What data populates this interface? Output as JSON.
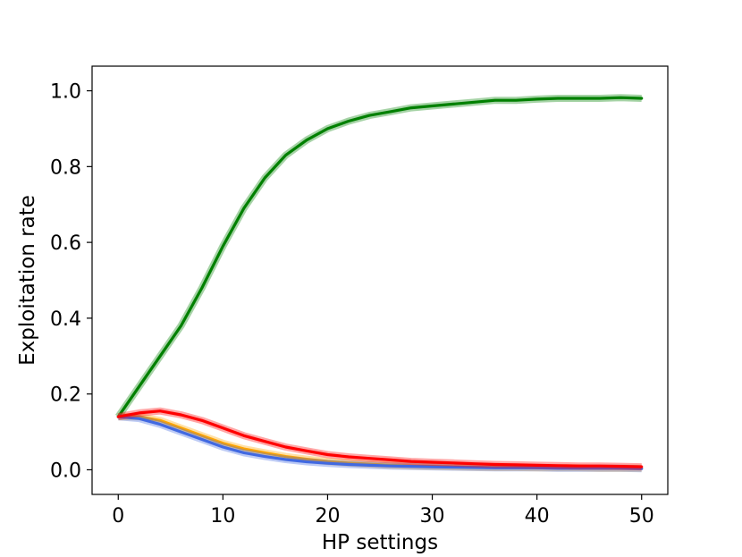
{
  "chart_data": {
    "type": "line",
    "title": "",
    "xlabel": "HP settings",
    "ylabel": "Exploitation rate",
    "xlim": [
      -2.5,
      52.5
    ],
    "ylim": [
      -0.065,
      1.065
    ],
    "xticks": [
      0,
      10,
      20,
      30,
      40,
      50
    ],
    "xtick_labels": [
      "0",
      "10",
      "20",
      "30",
      "40",
      "50"
    ],
    "yticks": [
      0.0,
      0.2,
      0.4,
      0.6,
      0.8,
      1.0
    ],
    "ytick_labels": [
      "0.0",
      "0.2",
      "0.4",
      "0.6",
      "0.8",
      "1.0"
    ],
    "grid": false,
    "legend": "none",
    "x": [
      0,
      2,
      4,
      6,
      8,
      10,
      12,
      14,
      16,
      18,
      20,
      22,
      24,
      26,
      28,
      30,
      32,
      34,
      36,
      38,
      40,
      42,
      44,
      46,
      48,
      50
    ],
    "series": [
      {
        "color": "#008000",
        "values": [
          0.14,
          0.22,
          0.3,
          0.38,
          0.48,
          0.59,
          0.69,
          0.77,
          0.83,
          0.87,
          0.9,
          0.92,
          0.935,
          0.945,
          0.955,
          0.96,
          0.965,
          0.97,
          0.975,
          0.975,
          0.978,
          0.98,
          0.98,
          0.98,
          0.982,
          0.98
        ]
      },
      {
        "color": "#ffa500",
        "values": [
          0.14,
          0.14,
          0.13,
          0.11,
          0.09,
          0.07,
          0.055,
          0.045,
          0.035,
          0.028,
          0.022,
          0.018,
          0.015,
          0.012,
          0.01,
          0.009,
          0.008,
          0.007,
          0.006,
          0.006,
          0.005,
          0.005,
          0.005,
          0.004,
          0.004,
          0.004
        ]
      },
      {
        "color": "#4169e1",
        "values": [
          0.14,
          0.135,
          0.12,
          0.1,
          0.08,
          0.06,
          0.045,
          0.035,
          0.027,
          0.021,
          0.017,
          0.014,
          0.012,
          0.01,
          0.009,
          0.008,
          0.007,
          0.006,
          0.005,
          0.005,
          0.005,
          0.004,
          0.004,
          0.004,
          0.004,
          0.003
        ]
      },
      {
        "color": "#ff0000",
        "values": [
          0.14,
          0.15,
          0.155,
          0.145,
          0.13,
          0.11,
          0.09,
          0.075,
          0.06,
          0.05,
          0.04,
          0.034,
          0.03,
          0.026,
          0.022,
          0.02,
          0.018,
          0.016,
          0.014,
          0.013,
          0.012,
          0.011,
          0.01,
          0.01,
          0.009,
          0.008
        ]
      }
    ]
  }
}
